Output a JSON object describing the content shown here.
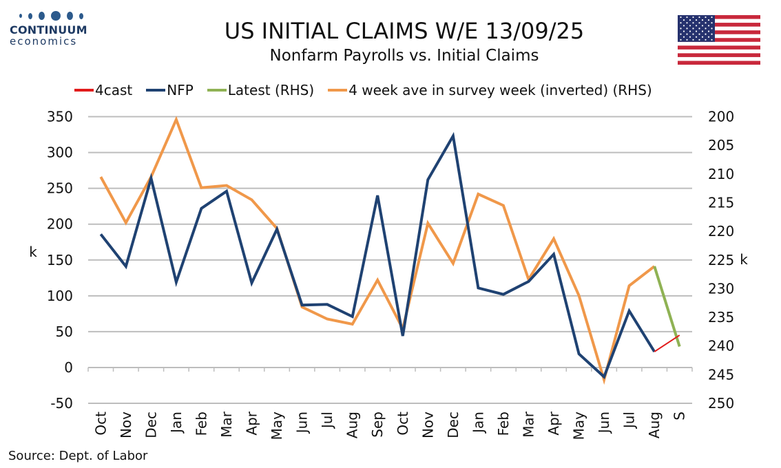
{
  "header": {
    "title": "US INITIAL CLAIMS W/E 13/09/25",
    "subtitle": "Nonfarm Payrolls vs. Initial Claims",
    "logo_brand": "CONTINUUM",
    "logo_sub": "economics",
    "flag_icon": "us-flag-icon"
  },
  "footer": {
    "source": "Source: Dept. of Labor"
  },
  "colors": {
    "nfp": "#1f4272",
    "avg": "#f0984a",
    "latest": "#8fb254",
    "forecast": "#e11b1b",
    "grid": "#bdbdbd"
  },
  "chart_data": {
    "type": "line",
    "categories": [
      "Oct",
      "Nov",
      "Dec",
      "Jan",
      "Feb",
      "Mar",
      "Apr",
      "May",
      "Jun",
      "Jul",
      "Aug",
      "Sep",
      "Oct",
      "Nov",
      "Dec",
      "Jan",
      "Feb",
      "Mar",
      "Apr",
      "May",
      "Jun",
      "Jul",
      "Aug",
      "S"
    ],
    "left_axis": {
      "label": "k",
      "min": -50,
      "max": 350,
      "ticks": [
        350,
        300,
        250,
        200,
        150,
        100,
        50,
        0,
        -50
      ]
    },
    "right_axis": {
      "label": "k",
      "min": 200,
      "max": 250,
      "inverted": true,
      "ticks": [
        200,
        205,
        210,
        215,
        220,
        225,
        230,
        235,
        240,
        245,
        250
      ]
    },
    "grid": true,
    "legend_position": "top",
    "legend": [
      {
        "key": "forecast",
        "label": "4cast"
      },
      {
        "key": "nfp",
        "label": "NFP"
      },
      {
        "key": "latest",
        "label": "Latest (RHS)"
      },
      {
        "key": "avg",
        "label": "4 week ave in survey week (inverted) (RHS)"
      }
    ],
    "series": [
      {
        "name": "NFP",
        "key": "nfp",
        "axis": "left",
        "x": [
          0,
          1,
          2,
          3,
          4,
          5,
          6,
          7,
          8,
          9,
          10,
          11,
          12,
          13,
          14,
          15,
          16,
          17,
          18,
          19,
          20,
          21,
          22
        ],
        "values": [
          186,
          141,
          264,
          119,
          222,
          246,
          118,
          193,
          87,
          88,
          71,
          240,
          44,
          262,
          323,
          111,
          102,
          120,
          158,
          19,
          -13,
          79,
          22
        ]
      },
      {
        "name": "4 week ave in survey week (inverted) (RHS)",
        "key": "avg",
        "axis": "right",
        "x": [
          0,
          1,
          2,
          3,
          4,
          5,
          6,
          7,
          8,
          9,
          10,
          11,
          12,
          13,
          14,
          15,
          16,
          17,
          18,
          19,
          20,
          21,
          22
        ],
        "values": [
          210.5,
          218.5,
          210.5,
          200.5,
          212.4,
          212,
          214.5,
          219.5,
          233.2,
          235.3,
          236.2,
          228.5,
          237,
          218.6,
          225.6,
          213.5,
          215.5,
          228.4,
          221.3,
          231.2,
          245.9,
          229.5,
          226.1
        ]
      },
      {
        "name": "Latest (RHS)",
        "key": "latest",
        "axis": "right",
        "x": [
          22,
          23
        ],
        "values": [
          226.1,
          240.1
        ]
      },
      {
        "name": "4cast",
        "key": "forecast",
        "axis": "left",
        "x": [
          22,
          23
        ],
        "values": [
          22,
          45
        ]
      }
    ]
  }
}
